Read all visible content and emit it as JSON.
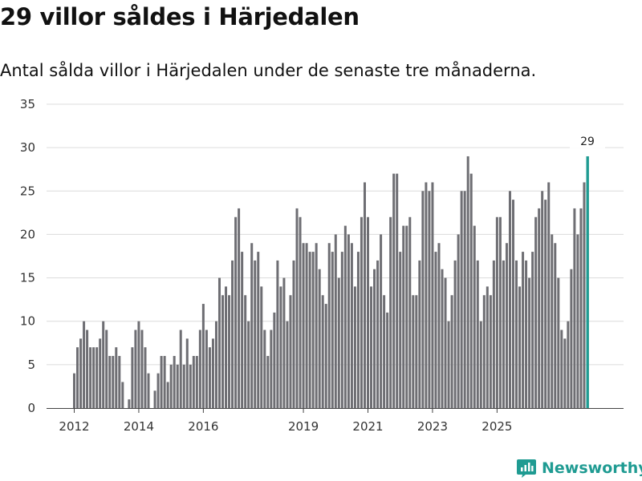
{
  "title": "29 villor såldes i Härjedalen",
  "subtitle": "Antal sålda villor i Härjedalen under de senaste tre månaderna.",
  "brand": {
    "name": "Newsworthy",
    "icon": "newsworthy-logo-icon"
  },
  "colors": {
    "bar": "#6e6e73",
    "highlight": "#1f9b92",
    "grid": "#dcdcdc",
    "axis": "#444444",
    "brand": "#1f9b92"
  },
  "chart_data": {
    "type": "bar",
    "title": "29 villor såldes i Härjedalen",
    "xlabel": "",
    "ylabel": "",
    "ylim": [
      0,
      35
    ],
    "yticks": [
      0,
      5,
      10,
      15,
      20,
      25,
      30,
      35
    ],
    "xticks": [
      {
        "label": "2012",
        "index": 0
      },
      {
        "label": "2014",
        "index": 20
      },
      {
        "label": "2016",
        "index": 40
      },
      {
        "label": "2019",
        "index": 71
      },
      {
        "label": "2021",
        "index": 91
      },
      {
        "label": "2023",
        "index": 111
      },
      {
        "label": "2025",
        "index": 131
      }
    ],
    "series": [
      {
        "name": "Sålda villor",
        "values": [
          4,
          7,
          8,
          10,
          9,
          7,
          7,
          7,
          8,
          10,
          9,
          6,
          6,
          7,
          6,
          3,
          0,
          1,
          7,
          9,
          10,
          9,
          7,
          4,
          0,
          2,
          4,
          6,
          6,
          3,
          5,
          6,
          5,
          9,
          5,
          8,
          5,
          6,
          6,
          9,
          12,
          9,
          7,
          8,
          10,
          15,
          13,
          14,
          13,
          17,
          22,
          23,
          18,
          13,
          10,
          19,
          17,
          18,
          14,
          9,
          6,
          9,
          11,
          17,
          14,
          15,
          10,
          13,
          17,
          23,
          22,
          19,
          19,
          18,
          18,
          19,
          16,
          13,
          12,
          19,
          18,
          20,
          15,
          18,
          21,
          20,
          19,
          14,
          18,
          22,
          26,
          22,
          14,
          16,
          17,
          20,
          13,
          11,
          22,
          27,
          27,
          18,
          21,
          21,
          22,
          13,
          13,
          17,
          25,
          26,
          25,
          26,
          18,
          19,
          16,
          15,
          10,
          13,
          17,
          20,
          25,
          25,
          29,
          27,
          21,
          17,
          10,
          13,
          14,
          13,
          17,
          22,
          22,
          17,
          19,
          25,
          24,
          17,
          14,
          18,
          17,
          15,
          18,
          22,
          23,
          25,
          24,
          26,
          20,
          19,
          15,
          9,
          8,
          10,
          16,
          23,
          20,
          23,
          26,
          29
        ]
      }
    ],
    "highlight": {
      "index": 159,
      "value": 29,
      "label": "29"
    }
  }
}
